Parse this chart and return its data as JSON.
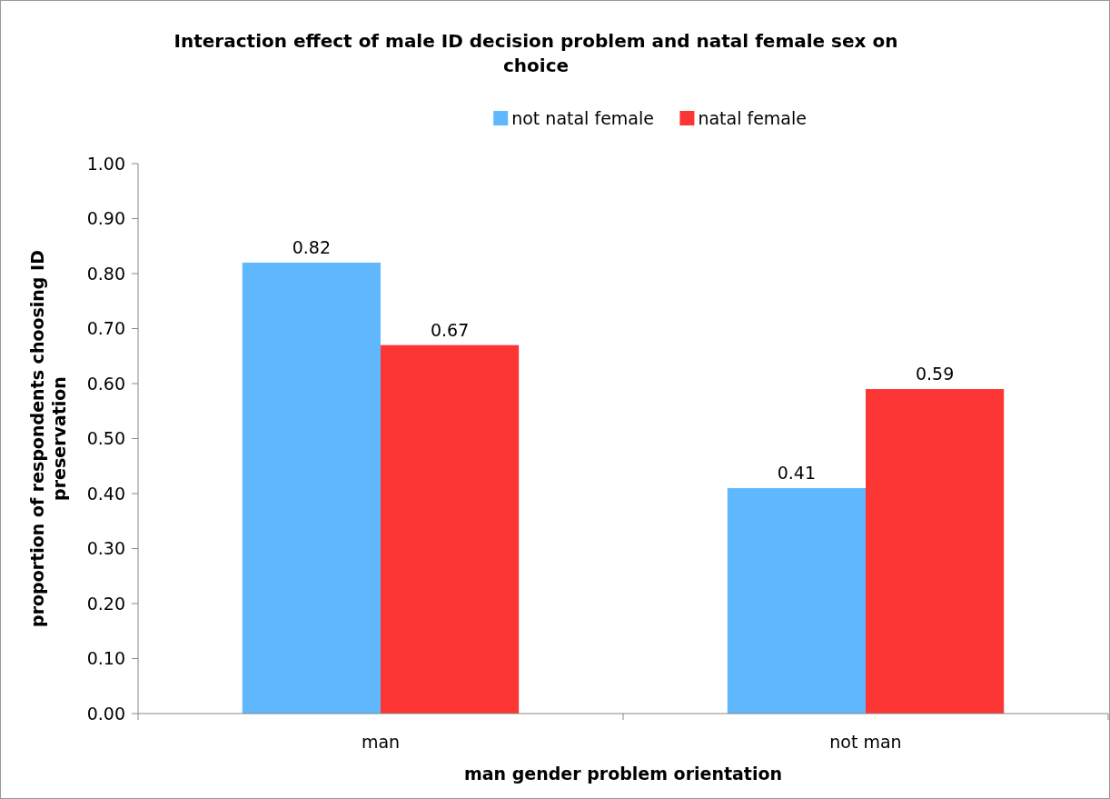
{
  "chart_data": {
    "type": "bar",
    "title": "Interaction effect of male ID decision problem and natal female sex on choice",
    "xlabel": "man gender problem orientation",
    "ylabel": "proportion of respondents choosing ID preservation",
    "categories": [
      "man",
      "not man"
    ],
    "series": [
      {
        "name": "not natal female",
        "color": "#5fb8fe",
        "values": [
          0.82,
          0.41
        ]
      },
      {
        "name": "natal female",
        "color": "#fc3535",
        "values": [
          0.67,
          0.59
        ]
      }
    ],
    "ylim": [
      0,
      1
    ],
    "yticks": [
      {
        "value": 0,
        "label": "0.00"
      },
      {
        "value": 0.1,
        "label": "0.10"
      },
      {
        "value": 0.2,
        "label": "0.20"
      },
      {
        "value": 0.3,
        "label": "0.30"
      },
      {
        "value": 0.4,
        "label": "0.40"
      },
      {
        "value": 0.5,
        "label": "0.50"
      },
      {
        "value": 0.6,
        "label": "0.60"
      },
      {
        "value": 0.7,
        "label": "0.70"
      },
      {
        "value": 0.8,
        "label": "0.80"
      },
      {
        "value": 0.9,
        "label": "0.90"
      },
      {
        "value": 1,
        "label": "1.00"
      }
    ],
    "data_labels": true,
    "legend": "top",
    "grid": false
  }
}
